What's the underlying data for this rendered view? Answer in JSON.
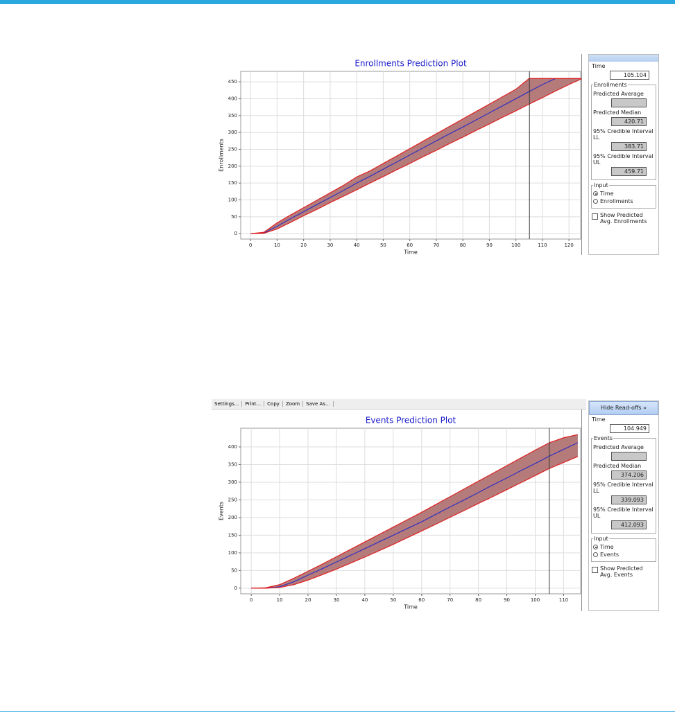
{
  "chart_data": [
    {
      "type": "line",
      "title": "Enrollments Prediction Plot",
      "x_label": "Time",
      "y_label": "Enrollments",
      "x": [
        0,
        5,
        10,
        15,
        20,
        25,
        30,
        35,
        40,
        45,
        50,
        55,
        60,
        65,
        70,
        75,
        80,
        85,
        90,
        95,
        100,
        105,
        110,
        115,
        120,
        125
      ],
      "series": [
        {
          "color": "#3030c0",
          "values": [
            0,
            2,
            22,
            44,
            65,
            86,
            107,
            128,
            150,
            170,
            191,
            212,
            233,
            254,
            275,
            296,
            316,
            337,
            358,
            379,
            400,
            421,
            442,
            460,
            null,
            null
          ]
        },
        {
          "color": "#e02020",
          "values": [
            0,
            1,
            14,
            33,
            53,
            72,
            92,
            111,
            130,
            150,
            169,
            189,
            208,
            228,
            247,
            267,
            286,
            306,
            325,
            345,
            364,
            384,
            403,
            423,
            442,
            460
          ]
        },
        {
          "color": "#e02020",
          "values": [
            0,
            4,
            32,
            55,
            77,
            99,
            121,
            143,
            168,
            186,
            208,
            230,
            252,
            274,
            296,
            318,
            340,
            362,
            384,
            406,
            428,
            460,
            460,
            460,
            460,
            460
          ]
        }
      ],
      "band_color": "#b57b7b",
      "cursor_x": 105.104,
      "xlim": [
        -3.7,
        124.4
      ],
      "ylim": [
        -16,
        481
      ],
      "xticks": [
        0,
        10,
        20,
        30,
        40,
        50,
        60,
        70,
        80,
        90,
        100,
        110,
        120
      ],
      "yticks": [
        0,
        50,
        100,
        150,
        200,
        250,
        300,
        350,
        400,
        450
      ],
      "grid": true
    },
    {
      "type": "line",
      "title": "Events Prediction Plot",
      "x_label": "Time",
      "y_label": "Events",
      "x": [
        0,
        5,
        10,
        15,
        20,
        25,
        30,
        35,
        40,
        45,
        50,
        55,
        60,
        65,
        70,
        75,
        80,
        85,
        90,
        95,
        100,
        105,
        110,
        115
      ],
      "series": [
        {
          "color": "#3030c0",
          "values": [
            0,
            0,
            4,
            18,
            37,
            55,
            74,
            93,
            112,
            131,
            150,
            169,
            188,
            209,
            230,
            250,
            271,
            292,
            312,
            333,
            353,
            374,
            393,
            412
          ]
        },
        {
          "color": "#e02020",
          "values": [
            0,
            0,
            2,
            10,
            23,
            38,
            54,
            71,
            88,
            106,
            124,
            143,
            162,
            181,
            201,
            220,
            240,
            259,
            279,
            299,
            319,
            339,
            356,
            373
          ]
        },
        {
          "color": "#e02020",
          "values": [
            0,
            1,
            10,
            28,
            48,
            68,
            89,
            110,
            131,
            152,
            173,
            194,
            215,
            237,
            259,
            281,
            303,
            325,
            347,
            369,
            391,
            412,
            426,
            435
          ]
        }
      ],
      "band_color": "#b57b7b",
      "cursor_x": 104.949,
      "xlim": [
        -3.7,
        116
      ],
      "ylim": [
        -16,
        453
      ],
      "xticks": [
        0,
        10,
        20,
        30,
        40,
        50,
        60,
        70,
        80,
        90,
        100,
        110
      ],
      "yticks": [
        0,
        50,
        100,
        150,
        200,
        250,
        300,
        350,
        400
      ],
      "grid": true
    }
  ],
  "toolbar": [
    "Settings...",
    "Print...",
    "Copy",
    "Zoom",
    "Save As..."
  ],
  "panels": [
    {
      "time_label": "Time",
      "group": "Enrollments",
      "fields": [
        {
          "label": "Predicted Average"
        },
        {
          "label": "Predicted Median",
          "value": 420.71
        },
        {
          "label": "95% Credible Interval LL",
          "value": 383.71
        },
        {
          "label": "95% Credible Interval UL",
          "value": 459.71
        }
      ],
      "input_label": "Input",
      "options": [
        "Time",
        "Enrollments"
      ],
      "checkbox": "Show Predicted Avg. Enrollments"
    },
    {
      "header": "Hide Read-offs »",
      "time_label": "Time",
      "group": "Events",
      "fields": [
        {
          "label": "Predicted Average"
        },
        {
          "label": "Predicted Median",
          "value": 374.206
        },
        {
          "label": "95% Credible Interval LL",
          "value": 339.093
        },
        {
          "label": "95% Credible Interval UL",
          "value": 412.093
        }
      ],
      "input_label": "Input",
      "options": [
        "Time",
        "Events"
      ],
      "checkbox": "Show Predicted Avg. Events"
    }
  ]
}
